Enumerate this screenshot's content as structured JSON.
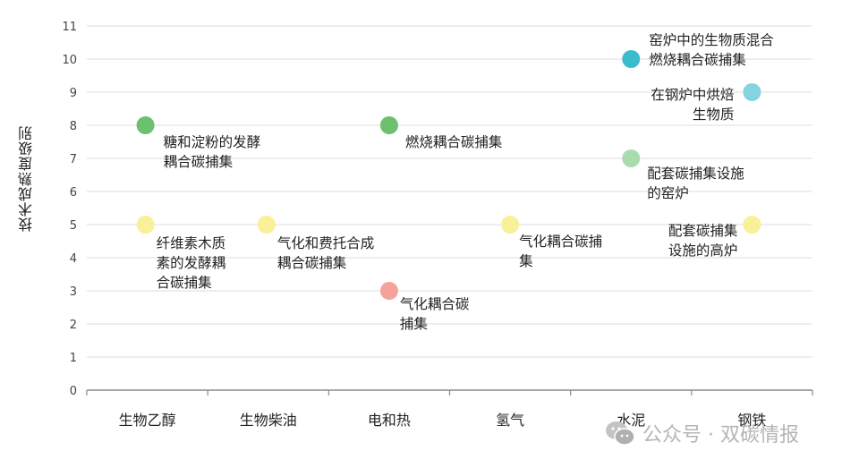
{
  "chart_data": {
    "type": "scatter",
    "title": "",
    "xlabel": "",
    "ylabel": "技术成熟度级别",
    "ylim": [
      0,
      11
    ],
    "yticks": [
      0,
      1,
      2,
      3,
      4,
      5,
      6,
      7,
      8,
      9,
      10,
      11
    ],
    "grid": true,
    "categories": [
      "生物乙醇",
      "生物柴油",
      "电和热",
      "氢气",
      "水泥",
      "钢铁"
    ],
    "points": [
      {
        "category": "生物乙醇",
        "y": 8,
        "label": "糖和淀粉的发酵\n耦合碳捕集",
        "color": "#6cc06e"
      },
      {
        "category": "生物乙醇",
        "y": 5,
        "label": "纤维素木质\n素的发酵耦\n合碳捕集",
        "color": "#f9f09a"
      },
      {
        "category": "生物柴油",
        "y": 5,
        "label": "气化和费托合成\n耦合碳捕集",
        "color": "#f9f09a"
      },
      {
        "category": "电和热",
        "y": 8,
        "label": "燃烧耦合碳捕集",
        "color": "#6cc06e"
      },
      {
        "category": "电和热",
        "y": 3,
        "label": "气化耦合碳\n捕集",
        "color": "#f4a39b"
      },
      {
        "category": "氢气",
        "y": 5,
        "label": "气化耦合碳捕\n集",
        "color": "#f9f09a"
      },
      {
        "category": "水泥",
        "y": 10,
        "label": "窑炉中的生物质混合\n燃烧耦合碳捕集",
        "color": "#3bbccb"
      },
      {
        "category": "水泥",
        "y": 7,
        "label": "配套碳捕集设施\n的窑炉",
        "color": "#a8dcb0"
      },
      {
        "category": "钢铁",
        "y": 9,
        "label": "在钢炉中烘焙\n生物质",
        "color": "#86d4df"
      },
      {
        "category": "钢铁",
        "y": 5,
        "label": "配套碳捕集\n设施的高炉",
        "color": "#f9f09a"
      }
    ],
    "legend": null
  },
  "watermark": {
    "text": "公众号 · 双碳情报",
    "icon": "wechat-icon"
  },
  "colors": {
    "grid": "#e3e3e3",
    "axis": "#8a8a8a",
    "tick_text": "#444444"
  }
}
